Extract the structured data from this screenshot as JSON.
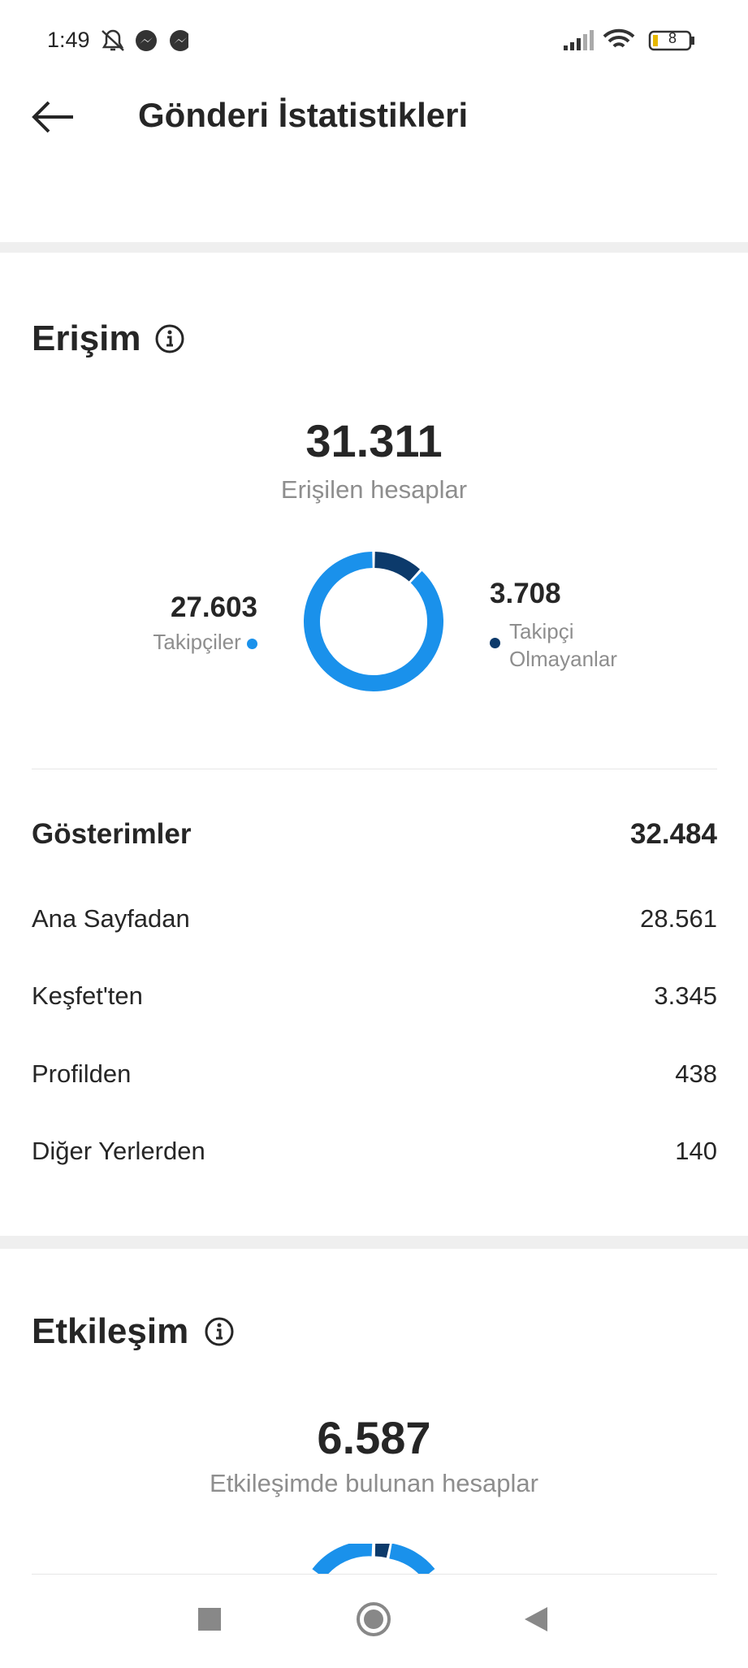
{
  "status_bar": {
    "time": "1:49",
    "battery": "8"
  },
  "header": {
    "title": "Gönderi İstatistikleri"
  },
  "reach": {
    "title": "Erişim",
    "total": "31.311",
    "total_label": "Erişilen hesaplar",
    "chart": {
      "type": "donut",
      "categories": [
        "Takipçiler",
        "Takipçi Olmayanlar"
      ],
      "values": [
        27603,
        3708
      ],
      "value_labels": [
        "27.603",
        "3.708"
      ],
      "colors": [
        "#1a91eb",
        "#0c3a6b"
      ]
    }
  },
  "impressions": {
    "title": "Gösterimler",
    "total": "32.484",
    "rows": [
      [
        "Ana Sayfadan",
        "28.561"
      ],
      [
        "Keşfet'ten",
        "3.345"
      ],
      [
        "Profilden",
        "438"
      ],
      [
        "Diğer Yerlerden",
        "140"
      ]
    ]
  },
  "engagement": {
    "title": "Etkileşim",
    "total": "6.587",
    "total_label": "Etkileşimde bulunan hesaplar"
  }
}
